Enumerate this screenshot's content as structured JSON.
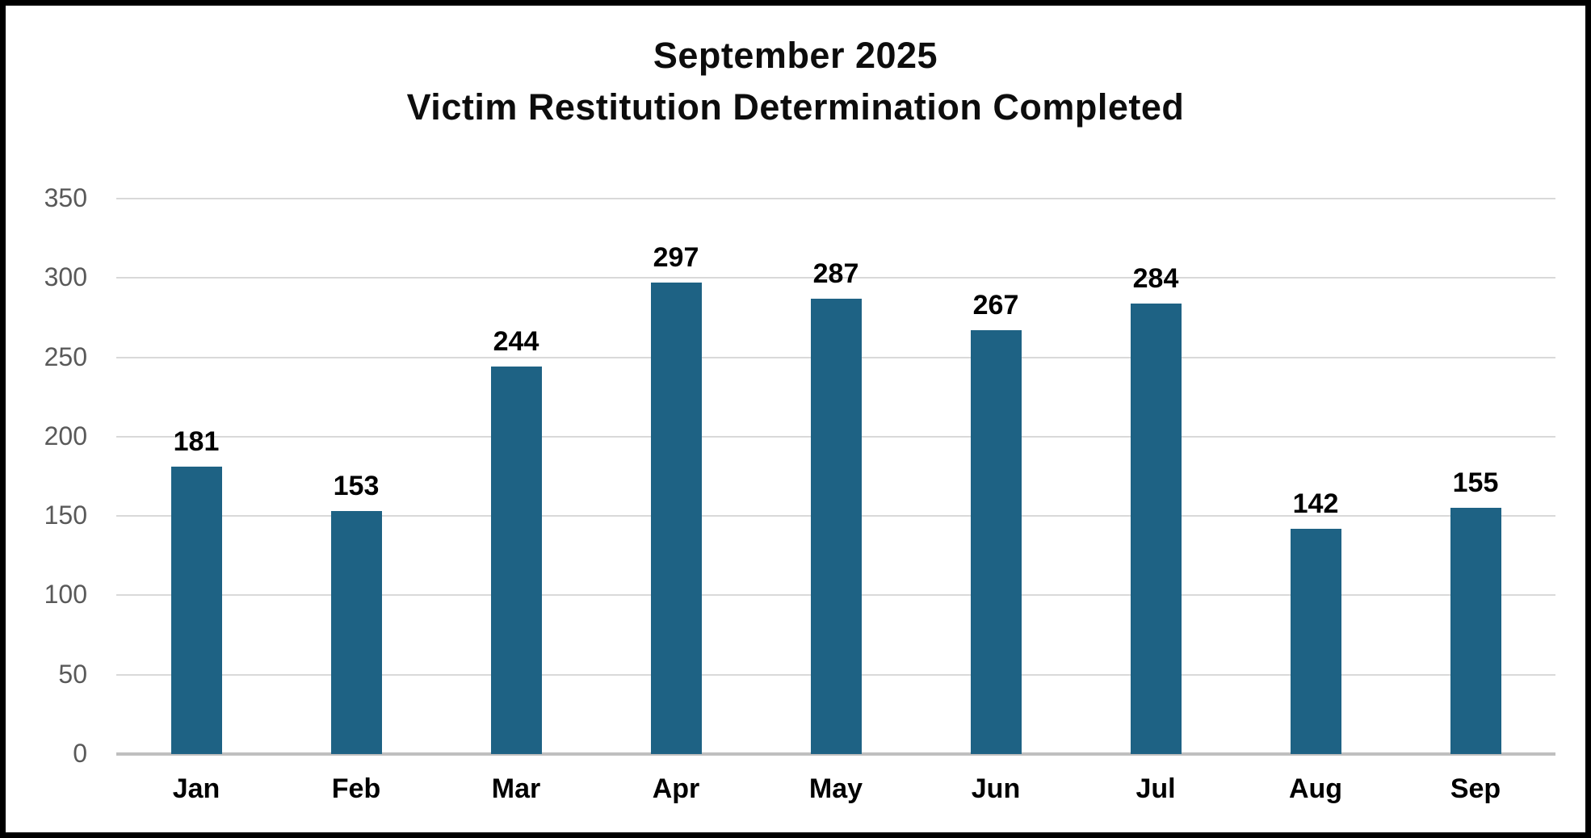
{
  "chart_data": {
    "type": "bar",
    "title_line1": "September 2025",
    "title_line2": "Victim Restitution Determination Completed",
    "categories": [
      "Jan",
      "Feb",
      "Mar",
      "Apr",
      "May",
      "Jun",
      "Jul",
      "Aug",
      "Sep"
    ],
    "values": [
      181,
      153,
      244,
      297,
      287,
      267,
      284,
      142,
      155
    ],
    "xlabel": "",
    "ylabel": "",
    "ylim": [
      0,
      350
    ],
    "yticks": [
      0,
      50,
      100,
      150,
      200,
      250,
      300,
      350
    ],
    "grid": true,
    "legend_position": "none",
    "data_labels": true,
    "colors": {
      "bar": "#1E6284",
      "gridline": "#D9D9D9",
      "axis_line": "#BFBFBF",
      "ytick_label": "#595959",
      "title": "#0D0D0D",
      "frame_border": "#000000",
      "background": "#FFFFFF"
    }
  }
}
